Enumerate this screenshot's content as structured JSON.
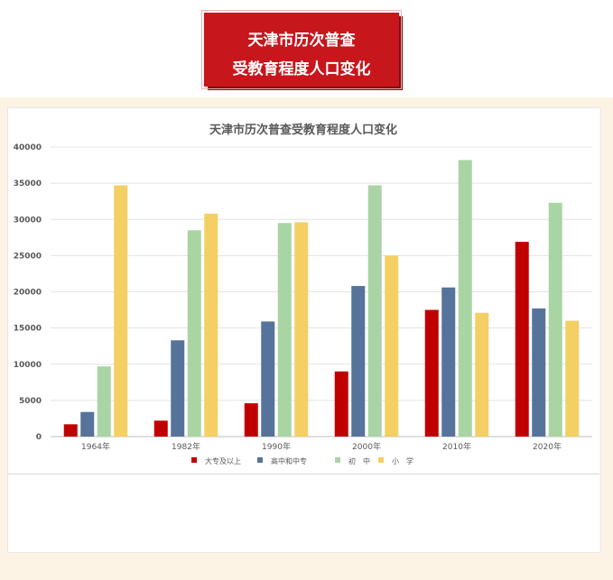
{
  "banner": {
    "line1": "天津市历次普查",
    "line2": "受教育程度人口变化"
  },
  "colors": {
    "banner_red": "#c8161d",
    "background_cream": "#fdf3e4"
  },
  "chart_data": {
    "type": "bar",
    "title": "天津市历次普查受教育程度人口变化",
    "xlabel": "",
    "ylabel": "",
    "categories": [
      "1964年",
      "1982年",
      "1990年",
      "2000年",
      "2010年",
      "2020年"
    ],
    "ylim": [
      0,
      40000
    ],
    "yticks": [
      0,
      5000,
      10000,
      15000,
      20000,
      25000,
      30000,
      35000,
      40000
    ],
    "grid": true,
    "legend_position": "bottom",
    "series": [
      {
        "name": "大专及以上",
        "color": "#c00000",
        "values": [
          1700,
          2200,
          4600,
          9000,
          17500,
          26900
        ]
      },
      {
        "name": "高中和中专",
        "color": "#56739b",
        "values": [
          3400,
          13300,
          15900,
          20800,
          20600,
          17700
        ]
      },
      {
        "name": "初　中",
        "color": "#a9d4a4",
        "values": [
          9700,
          28500,
          29500,
          34700,
          38200,
          32300
        ]
      },
      {
        "name": "小　学",
        "color": "#f4cf64",
        "values": [
          34700,
          30800,
          29600,
          25000,
          17100,
          16000
        ]
      }
    ]
  }
}
